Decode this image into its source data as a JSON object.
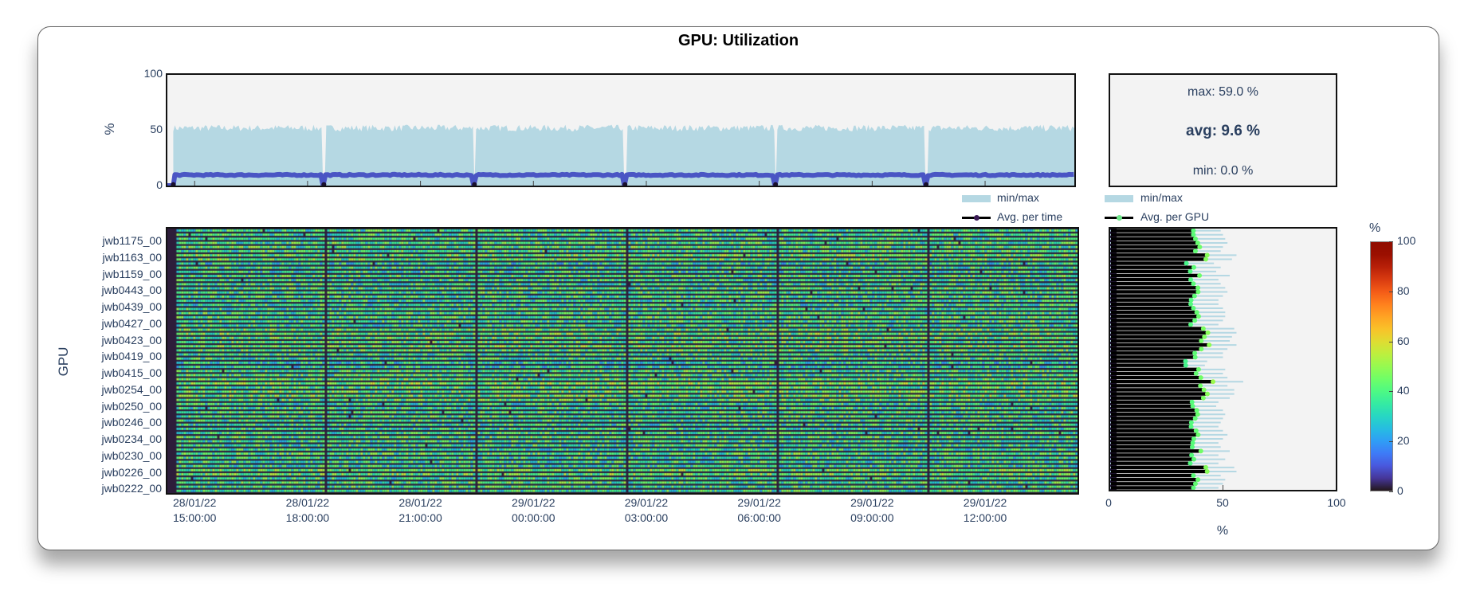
{
  "title": "GPU: Utilization",
  "stats": {
    "max": "max: 59.0 %",
    "avg": "avg: 9.6 %",
    "min": "min: 0.0 %"
  },
  "legend_time": {
    "minmax": "min/max",
    "avg": "Avg. per time"
  },
  "legend_gpu": {
    "minmax": "min/max",
    "avg": "Avg. per GPU"
  },
  "colors": {
    "minmax": "#b5d8e3",
    "avg_time": "#4a55c4",
    "avg_gpu_marker": "#6ee68a",
    "plot_bg": "#f3f3f3"
  },
  "chart_data": [
    {
      "type": "area",
      "name": "utilization-over-time",
      "ylabel": "%",
      "ylim": [
        0,
        100
      ],
      "yticks": [
        "0",
        "50",
        "100"
      ],
      "time_range_hours": [
        "28/01/22 14:14",
        "29/01/22 14:25"
      ],
      "avg_level": 9.6,
      "max_level_approx": 53,
      "drops_to_zero_at": [
        "28/01/22 18:26",
        "28/01/22 22:26",
        "29/01/22 02:26",
        "29/01/22 06:26",
        "29/01/22 10:26"
      ],
      "series": [
        {
          "name": "min/max"
        },
        {
          "name": "Avg. per time"
        }
      ]
    },
    {
      "type": "heatmap",
      "name": "utilization-per-gpu-over-time",
      "ylabel": "GPU",
      "xticks": [
        {
          "date": "28/01/22",
          "time": "15:00:00"
        },
        {
          "date": "28/01/22",
          "time": "18:00:00"
        },
        {
          "date": "28/01/22",
          "time": "21:00:00"
        },
        {
          "date": "29/01/22",
          "time": "00:00:00"
        },
        {
          "date": "29/01/22",
          "time": "03:00:00"
        },
        {
          "date": "29/01/22",
          "time": "06:00:00"
        },
        {
          "date": "29/01/22",
          "time": "09:00:00"
        },
        {
          "date": "29/01/22",
          "time": "12:00:00"
        }
      ],
      "yticks": [
        "jwb1175_00",
        "jwb1163_00",
        "jwb1159_00",
        "jwb0443_00",
        "jwb0439_00",
        "jwb0427_00",
        "jwb0423_00",
        "jwb0419_00",
        "jwb0415_00",
        "jwb0254_00",
        "jwb0250_00",
        "jwb0246_00",
        "jwb0234_00",
        "jwb0230_00",
        "jwb0226_00",
        "jwb0222_00"
      ],
      "gpu_count": 64
    },
    {
      "type": "bar",
      "name": "avg-per-gpu",
      "xlabel": "%",
      "xlim": [
        0,
        100
      ],
      "xticks": [
        "0",
        "50",
        "100"
      ],
      "avg_top_to_bottom": [
        36.9,
        36.9,
        37.8,
        38.8,
        39.7,
        37.8,
        43.0,
        42.4,
        33.8,
        37.1,
        35.5,
        39.6,
        35.7,
        36.9,
        38.9,
        39.0,
        37.4,
        35.9,
        35.7,
        36.9,
        38.4,
        39.2,
        37.5,
        35.7,
        41.3,
        43.3,
        41.8,
        40.4,
        43.9,
        40.4,
        37.5,
        37.7,
        33.4,
        33.5,
        39.2,
        38.1,
        40.2,
        45.6,
        40.0,
        41.6,
        43.1,
        41.3,
        36.3,
        36.6,
        38.4,
        38.8,
        37.7,
        36.0,
        35.9,
        38.1,
        39.0,
        37.1,
        36.6,
        36.4,
        40.2,
        36.1,
        37.1,
        35.5,
        42.4,
        43.0,
        36.9,
        38.9,
        37.8,
        36.9
      ],
      "max_top_to_bottom": [
        49,
        50,
        51,
        52,
        50,
        49,
        56,
        54,
        46,
        49,
        47,
        53,
        48,
        49,
        51,
        52,
        50,
        48,
        48,
        50,
        51,
        51,
        50,
        48,
        55,
        56,
        54,
        53,
        56,
        52,
        50,
        50,
        43,
        42,
        51,
        50,
        52,
        59,
        52,
        55,
        55,
        53,
        48,
        47,
        50,
        51,
        50,
        49,
        48,
        50,
        52,
        50,
        48,
        49,
        53,
        48,
        51,
        48,
        55,
        56,
        49,
        51,
        50,
        48
      ],
      "min": 0
    },
    {
      "type": "colorbar",
      "title": "%",
      "range": [
        0,
        100
      ],
      "ticks": [
        "0",
        "20",
        "40",
        "60",
        "80",
        "100"
      ],
      "colormap": "turbo"
    }
  ]
}
